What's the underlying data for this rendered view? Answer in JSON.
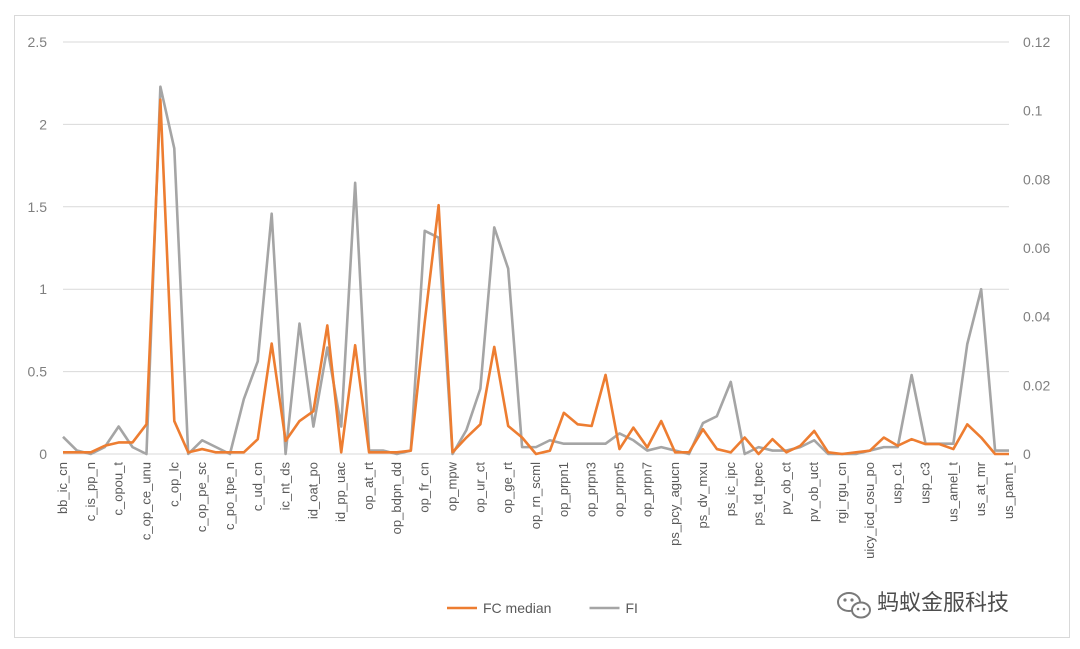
{
  "chart_data": {
    "type": "line",
    "categories": [
      "bb_ic_cn",
      "",
      "c_is_pp_n",
      "",
      "c_opou_t",
      "",
      "c_op_ce_unu",
      "",
      "c_op_lc",
      "",
      "c_op_pe_sc",
      "",
      "c_po_tpe_n",
      "",
      "c_ud_cn",
      "",
      "ic_nt_ds",
      "",
      "id_oat_po",
      "",
      "id_pp_uac",
      "",
      "op_at_rt",
      "",
      "op_bdpn_dd",
      "",
      "op_fr_cn",
      "",
      "op_mpw",
      "",
      "op_ur_ct",
      "",
      "op_ge_rt",
      "",
      "op_rn_scml",
      "",
      "op_prpn1",
      "",
      "op_prpn3",
      "",
      "op_prpn5",
      "",
      "op_prpn7",
      "",
      "ps_pcy_agucn",
      "",
      "ps_dv_mxu",
      "",
      "ps_ic_ipc",
      "",
      "ps_td_tpec",
      "",
      "pv_ob_ct",
      "",
      "pv_ob_uct",
      "",
      "rgi_rgu_cn",
      "",
      "uicy_icd_osu_po",
      "",
      "usp_c1",
      "",
      "usp_c3",
      "",
      "us_amel_t",
      "",
      "us_at_mr",
      "",
      "us_pam_t"
    ],
    "series": [
      {
        "name": "FC median",
        "axis": "left",
        "color": "#ED7D31",
        "values": [
          0.01,
          0.01,
          0.01,
          0.05,
          0.07,
          0.07,
          0.18,
          2.15,
          0.2,
          0.01,
          0.03,
          0.01,
          0.01,
          0.01,
          0.09,
          0.67,
          0.08,
          0.2,
          0.26,
          0.78,
          0.01,
          0.66,
          0.01,
          0.01,
          0.01,
          0.02,
          0.8,
          1.51,
          0.01,
          0.1,
          0.18,
          0.65,
          0.17,
          0.1,
          0.0,
          0.02,
          0.25,
          0.18,
          0.17,
          0.48,
          0.03,
          0.16,
          0.04,
          0.2,
          0.01,
          0.01,
          0.15,
          0.03,
          0.01,
          0.1,
          0.0,
          0.09,
          0.01,
          0.05,
          0.14,
          0.01,
          0.0,
          0.01,
          0.02,
          0.1,
          0.05,
          0.09,
          0.06,
          0.06,
          0.03,
          0.18,
          0.1,
          0.0,
          0.0
        ]
      },
      {
        "name": "FI",
        "axis": "right",
        "color": "#A5A5A5",
        "values": [
          0.005,
          0.001,
          0.0,
          0.002,
          0.008,
          0.002,
          0.0,
          0.107,
          0.089,
          0.0,
          0.004,
          0.002,
          0.0,
          0.016,
          0.027,
          0.07,
          0.0,
          0.038,
          0.008,
          0.031,
          0.008,
          0.079,
          0.001,
          0.001,
          0.0,
          0.001,
          0.065,
          0.063,
          0.0,
          0.007,
          0.019,
          0.066,
          0.054,
          0.002,
          0.002,
          0.004,
          0.003,
          0.003,
          0.003,
          0.003,
          0.006,
          0.004,
          0.001,
          0.002,
          0.001,
          0.0,
          0.009,
          0.011,
          0.021,
          0.0,
          0.002,
          0.001,
          0.001,
          0.002,
          0.004,
          0.0,
          0.0,
          0.0,
          0.001,
          0.002,
          0.002,
          0.023,
          0.003,
          0.003,
          0.003,
          0.032,
          0.048,
          0.001,
          0.001
        ]
      }
    ],
    "y_left": {
      "ticks": [
        "0",
        "0.5",
        "1",
        "1.5",
        "2",
        "2.5"
      ],
      "min": 0,
      "max": 2.5
    },
    "y_right": {
      "ticks": [
        "0",
        "0.02",
        "0.04",
        "0.06",
        "0.08",
        "0.1",
        "0.12"
      ],
      "min": 0,
      "max": 0.12
    },
    "grid": true,
    "legend": "bottom"
  },
  "watermark": {
    "text": "蚂蚁金服科技",
    "icon": "wechat-icon"
  }
}
